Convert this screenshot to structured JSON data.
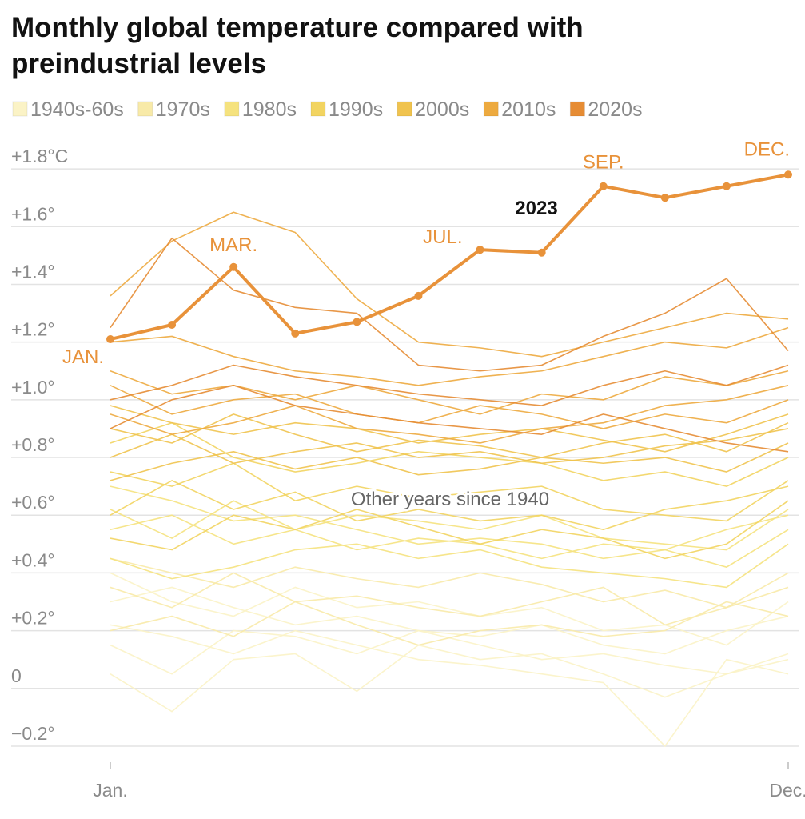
{
  "chart_data": {
    "type": "line",
    "title": [
      "Monthly global temperature compared with",
      "preindustrial levels"
    ],
    "legend": [
      {
        "name": "1940s-60s",
        "color": "#fbf3c6"
      },
      {
        "name": "1970s",
        "color": "#f8eaa8"
      },
      {
        "name": "1980s",
        "color": "#f5e27e"
      },
      {
        "name": "1990s",
        "color": "#f2d461"
      },
      {
        "name": "2000s",
        "color": "#f0c34e"
      },
      {
        "name": "2010s",
        "color": "#edaa3f"
      },
      {
        "name": "2020s",
        "color": "#e68c34"
      }
    ],
    "annotation": "Other years since 1940",
    "categories": [
      "Jan.",
      null,
      null,
      null,
      null,
      null,
      null,
      null,
      null,
      null,
      null,
      "Dec."
    ],
    "ylim": [
      -0.25,
      1.9
    ],
    "yticks": [
      {
        "value": 1.8,
        "label": "+1.8°C"
      },
      {
        "value": 1.6,
        "label": "+1.6°"
      },
      {
        "value": 1.4,
        "label": "+1.4°"
      },
      {
        "value": 1.2,
        "label": "+1.2°"
      },
      {
        "value": 1.0,
        "label": "+1.0°"
      },
      {
        "value": 0.8,
        "label": "+0.8°"
      },
      {
        "value": 0.6,
        "label": "+0.6°"
      },
      {
        "value": 0.4,
        "label": "+0.4°"
      },
      {
        "value": 0.2,
        "label": "+0.2°"
      },
      0,
      {
        "value": -0.2,
        "label": "−0.2°"
      }
    ],
    "grid": true,
    "series": [
      {
        "color": "#fbf3c6",
        "values": [
          0.15,
          0.05,
          0.2,
          0.18,
          0.12,
          0.2,
          0.15,
          0.1,
          0.12,
          0.08,
          0.05,
          0.1
        ]
      },
      {
        "color": "#fbf3c6",
        "values": [
          0.3,
          0.35,
          0.28,
          0.22,
          0.25,
          0.2,
          0.18,
          0.22,
          0.15,
          0.12,
          0.2,
          0.25
        ]
      },
      {
        "color": "#fbf3c6",
        "values": [
          0.05,
          -0.08,
          0.1,
          0.12,
          -0.01,
          0.15,
          0.1,
          0.12,
          0.05,
          -0.03,
          0.05,
          0.12
        ]
      },
      {
        "color": "#fbf3c6",
        "values": [
          0.4,
          0.3,
          0.25,
          0.35,
          0.28,
          0.3,
          0.25,
          0.28,
          0.2,
          0.22,
          0.15,
          0.3
        ]
      },
      {
        "color": "#fbf3c6",
        "values": [
          0.22,
          0.18,
          0.12,
          0.2,
          0.15,
          0.1,
          0.08,
          0.05,
          0.02,
          -0.2,
          0.1,
          0.05
        ]
      },
      {
        "color": "#f8eaa8",
        "values": [
          0.35,
          0.28,
          0.4,
          0.3,
          0.32,
          0.28,
          0.25,
          0.3,
          0.35,
          0.22,
          0.28,
          0.35
        ]
      },
      {
        "color": "#f8eaa8",
        "values": [
          0.2,
          0.25,
          0.18,
          0.3,
          0.22,
          0.15,
          0.2,
          0.22,
          0.18,
          0.2,
          0.3,
          0.25
        ]
      },
      {
        "color": "#f8eaa8",
        "values": [
          0.45,
          0.4,
          0.35,
          0.42,
          0.38,
          0.35,
          0.4,
          0.36,
          0.3,
          0.34,
          0.28,
          0.4
        ]
      },
      {
        "color": "#f5e27e",
        "values": [
          0.55,
          0.6,
          0.5,
          0.55,
          0.48,
          0.52,
          0.5,
          0.45,
          0.5,
          0.48,
          0.42,
          0.55
        ]
      },
      {
        "color": "#f5e27e",
        "values": [
          0.7,
          0.65,
          0.58,
          0.6,
          0.55,
          0.5,
          0.52,
          0.5,
          0.45,
          0.48,
          0.55,
          0.6
        ]
      },
      {
        "color": "#f5e27e",
        "values": [
          0.45,
          0.38,
          0.42,
          0.48,
          0.5,
          0.45,
          0.48,
          0.42,
          0.4,
          0.38,
          0.35,
          0.5
        ]
      },
      {
        "color": "#f5e27e",
        "values": [
          0.62,
          0.52,
          0.65,
          0.55,
          0.6,
          0.58,
          0.55,
          0.6,
          0.52,
          0.5,
          0.48,
          0.62
        ]
      },
      {
        "color": "#f2d461",
        "values": [
          0.75,
          0.7,
          0.78,
          0.65,
          0.7,
          0.66,
          0.68,
          0.7,
          0.62,
          0.6,
          0.58,
          0.72
        ]
      },
      {
        "color": "#f2d461",
        "values": [
          0.6,
          0.72,
          0.62,
          0.68,
          0.58,
          0.62,
          0.58,
          0.6,
          0.55,
          0.62,
          0.65,
          0.7
        ]
      },
      {
        "color": "#f2d461",
        "values": [
          0.85,
          0.92,
          0.8,
          0.75,
          0.78,
          0.82,
          0.8,
          0.78,
          0.72,
          0.75,
          0.7,
          0.8
        ]
      },
      {
        "color": "#f2d461",
        "values": [
          0.52,
          0.48,
          0.6,
          0.55,
          0.62,
          0.56,
          0.5,
          0.55,
          0.52,
          0.45,
          0.5,
          0.65
        ]
      },
      {
        "color": "#f0c34e",
        "values": [
          0.9,
          0.85,
          0.95,
          0.88,
          0.82,
          0.86,
          0.84,
          0.8,
          0.85,
          0.88,
          0.82,
          0.92
        ]
      },
      {
        "color": "#f0c34e",
        "values": [
          0.8,
          0.88,
          0.78,
          0.82,
          0.85,
          0.8,
          0.82,
          0.78,
          0.8,
          0.84,
          0.86,
          0.9
        ]
      },
      {
        "color": "#f0c34e",
        "values": [
          0.98,
          0.92,
          0.88,
          0.92,
          0.9,
          0.85,
          0.88,
          0.9,
          0.86,
          0.82,
          0.88,
          0.95
        ]
      },
      {
        "color": "#f0c34e",
        "values": [
          0.72,
          0.78,
          0.82,
          0.76,
          0.8,
          0.74,
          0.76,
          0.8,
          0.78,
          0.8,
          0.75,
          0.85
        ]
      },
      {
        "color": "#edaa3f",
        "values": [
          1.05,
          0.95,
          1.0,
          1.02,
          0.95,
          0.92,
          0.98,
          0.95,
          0.9,
          0.95,
          0.92,
          1.0
        ]
      },
      {
        "color": "#edaa3f",
        "values": [
          0.95,
          0.88,
          0.92,
          0.98,
          0.9,
          0.88,
          0.85,
          0.9,
          0.92,
          0.98,
          1.0,
          1.05
        ]
      },
      {
        "color": "#edaa3f",
        "values": [
          1.1,
          1.02,
          1.05,
          1.0,
          1.05,
          1.0,
          0.95,
          1.02,
          1.0,
          1.08,
          1.05,
          1.1
        ]
      },
      {
        "color": "#edaa3f",
        "values": [
          1.36,
          1.55,
          1.65,
          1.58,
          1.35,
          1.2,
          1.18,
          1.15,
          1.2,
          1.25,
          1.3,
          1.28
        ]
      },
      {
        "color": "#edaa3f",
        "values": [
          1.2,
          1.22,
          1.15,
          1.1,
          1.08,
          1.05,
          1.08,
          1.1,
          1.15,
          1.2,
          1.18,
          1.25
        ]
      },
      {
        "color": "#e68c34",
        "values": [
          1.25,
          1.56,
          1.38,
          1.32,
          1.3,
          1.12,
          1.1,
          1.12,
          1.22,
          1.3,
          1.42,
          1.17
        ]
      },
      {
        "color": "#e68c34",
        "values": [
          0.9,
          1.0,
          1.05,
          0.98,
          0.95,
          0.92,
          0.9,
          0.88,
          0.95,
          0.9,
          0.85,
          0.82
        ]
      },
      {
        "color": "#e68c34",
        "values": [
          1.0,
          1.05,
          1.12,
          1.08,
          1.05,
          1.02,
          1.0,
          0.98,
          1.05,
          1.1,
          1.05,
          1.12
        ]
      },
      {
        "name": "2023",
        "color": "#e8923a",
        "values": [
          1.21,
          1.26,
          1.46,
          1.23,
          1.27,
          1.36,
          1.52,
          1.51,
          1.74,
          1.7,
          1.74,
          1.78
        ],
        "point_labels": [
          "JAN.",
          null,
          "MAR.",
          null,
          null,
          null,
          "JUL.",
          null,
          "SEP.",
          null,
          null,
          "DEC."
        ]
      }
    ]
  }
}
